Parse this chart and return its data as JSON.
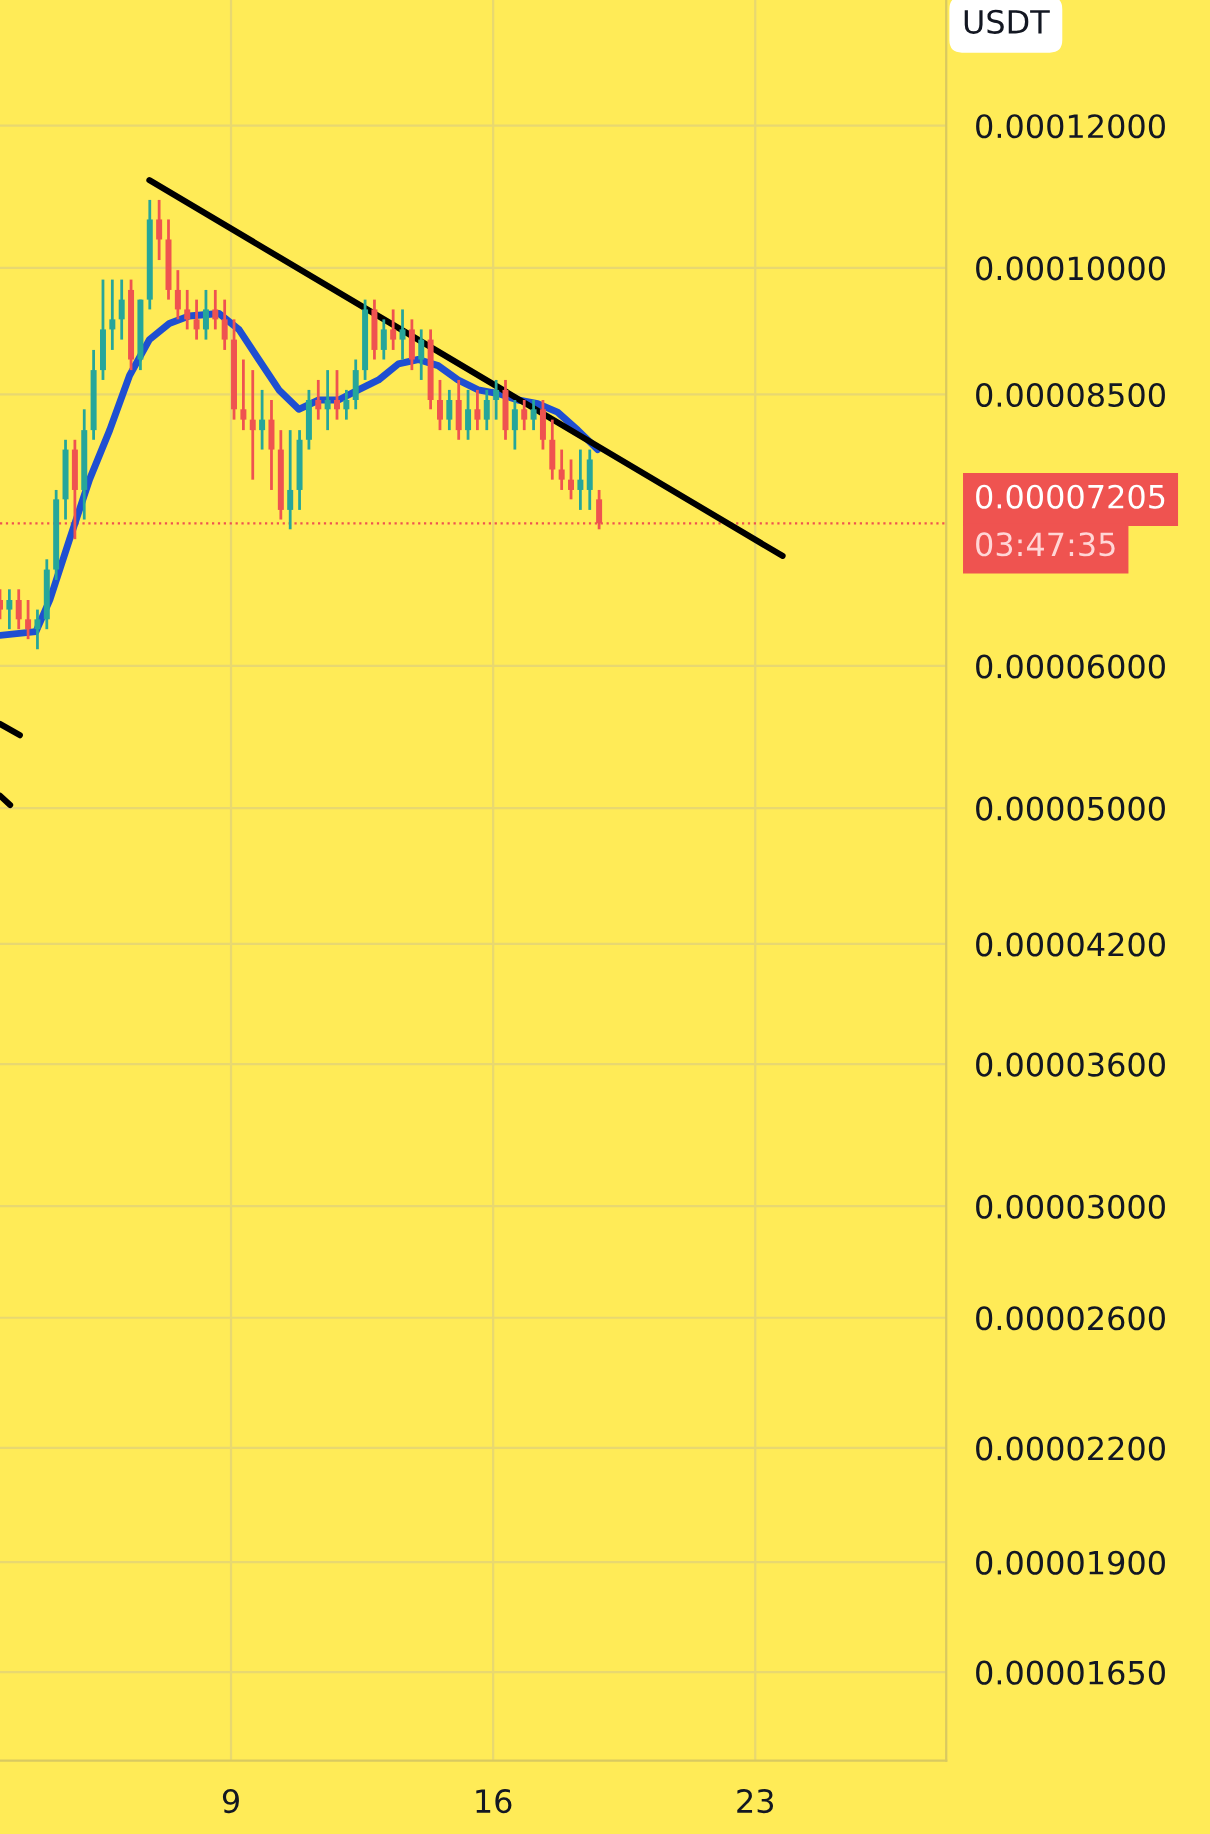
{
  "chart_data": {
    "type": "candlestick",
    "x": [
      2.83,
      3.08,
      3.33,
      3.58,
      3.83,
      4.08,
      4.33,
      4.58,
      4.83,
      5.08,
      5.33,
      5.58,
      5.83,
      6.08,
      6.33,
      6.58,
      6.83,
      7.08,
      7.33,
      7.58,
      7.83,
      8.08,
      8.33,
      8.58,
      8.83,
      9.08,
      9.33,
      9.58,
      9.83,
      10.08,
      10.33,
      10.58,
      10.83,
      11.08,
      11.33,
      11.58,
      11.83,
      12.08,
      12.33,
      12.58,
      12.83,
      13.08,
      13.33,
      13.58,
      13.83,
      14.08,
      14.33,
      14.58,
      14.83,
      15.08,
      15.33,
      15.58,
      15.83,
      16.08,
      16.33,
      16.58,
      16.83,
      17.08,
      17.33,
      17.58,
      17.83,
      18.08,
      18.33,
      18.58,
      18.83
    ],
    "ohlc": [
      [
        6.53e-05,
        6.62e-05,
        6.37e-05,
        6.45e-05
      ],
      [
        6.45e-05,
        6.62e-05,
        6.29e-05,
        6.53e-05
      ],
      [
        6.53e-05,
        6.62e-05,
        6.29e-05,
        6.37e-05
      ],
      [
        6.37e-05,
        6.53e-05,
        6.21e-05,
        6.29e-05
      ],
      [
        6.29e-05,
        6.45e-05,
        6.13e-05,
        6.37e-05
      ],
      [
        6.37e-05,
        6.88e-05,
        6.29e-05,
        6.79e-05
      ],
      [
        6.79e-05,
        7.52e-05,
        6.7e-05,
        7.43e-05
      ],
      [
        7.43e-05,
        8.02e-05,
        7.24e-05,
        7.92e-05
      ],
      [
        7.92e-05,
        8.02e-05,
        7.06e-05,
        7.52e-05
      ],
      [
        7.52e-05,
        8.34e-05,
        7.24e-05,
        8.12e-05
      ],
      [
        8.12e-05,
        9e-05,
        8.02e-05,
        8.77e-05
      ],
      [
        8.77e-05,
        9.85e-05,
        8.66e-05,
        9.24e-05
      ],
      [
        9.24e-05,
        9.85e-05,
        9e-05,
        9.36e-05
      ],
      [
        9.36e-05,
        9.85e-05,
        9.12e-05,
        9.6e-05
      ],
      [
        9.72e-05,
        9.85e-05,
        8.77e-05,
        8.89e-05
      ],
      [
        8.89e-05,
        9.6e-05,
        8.77e-05,
        9.6e-05
      ],
      [
        9.6e-05,
        0.0001091,
        9.48e-05,
        0.0001064
      ],
      [
        0.0001064,
        0.0001091,
        0.000101,
        0.0001037
      ],
      [
        0.0001037,
        0.0001064,
        9.6e-05,
        9.72e-05
      ],
      [
        9.72e-05,
        9.97e-05,
        9.36e-05,
        9.48e-05
      ],
      [
        9.48e-05,
        9.72e-05,
        9.24e-05,
        9.36e-05
      ],
      [
        9.36e-05,
        9.6e-05,
        9.12e-05,
        9.24e-05
      ],
      [
        9.24e-05,
        9.72e-05,
        9.12e-05,
        9.48e-05
      ],
      [
        9.48e-05,
        9.72e-05,
        9.24e-05,
        9.36e-05
      ],
      [
        9.36e-05,
        9.6e-05,
        9e-05,
        9.12e-05
      ],
      [
        9.12e-05,
        9.36e-05,
        8.23e-05,
        8.34e-05
      ],
      [
        8.34e-05,
        8.89e-05,
        8.12e-05,
        8.23e-05
      ],
      [
        8.23e-05,
        8.77e-05,
        7.62e-05,
        8.12e-05
      ],
      [
        8.12e-05,
        8.55e-05,
        7.92e-05,
        8.23e-05
      ],
      [
        8.23e-05,
        8.44e-05,
        7.52e-05,
        7.92e-05
      ],
      [
        7.92e-05,
        8.12e-05,
        7.24e-05,
        7.33e-05
      ],
      [
        7.33e-05,
        8.12e-05,
        7.15e-05,
        7.52e-05
      ],
      [
        7.52e-05,
        8.12e-05,
        7.33e-05,
        8.02e-05
      ],
      [
        8.02e-05,
        8.55e-05,
        7.92e-05,
        8.44e-05
      ],
      [
        8.44e-05,
        8.66e-05,
        8.23e-05,
        8.34e-05
      ],
      [
        8.34e-05,
        8.77e-05,
        8.12e-05,
        8.44e-05
      ],
      [
        8.44e-05,
        8.77e-05,
        8.23e-05,
        8.34e-05
      ],
      [
        8.34e-05,
        8.55e-05,
        8.23e-05,
        8.44e-05
      ],
      [
        8.44e-05,
        8.89e-05,
        8.34e-05,
        8.77e-05
      ],
      [
        8.77e-05,
        9.6e-05,
        8.66e-05,
        9.48e-05
      ],
      [
        9.48e-05,
        9.6e-05,
        8.89e-05,
        9e-05
      ],
      [
        9e-05,
        9.36e-05,
        8.89e-05,
        9.24e-05
      ],
      [
        9.24e-05,
        9.48e-05,
        9e-05,
        9.12e-05
      ],
      [
        9.12e-05,
        9.48e-05,
        8.89e-05,
        9.24e-05
      ],
      [
        9.24e-05,
        9.36e-05,
        8.77e-05,
        8.89e-05
      ],
      [
        8.89e-05,
        9.24e-05,
        8.66e-05,
        9.12e-05
      ],
      [
        9.12e-05,
        9.24e-05,
        8.34e-05,
        8.44e-05
      ],
      [
        8.44e-05,
        8.66e-05,
        8.12e-05,
        8.23e-05
      ],
      [
        8.23e-05,
        8.55e-05,
        8.12e-05,
        8.44e-05
      ],
      [
        8.44e-05,
        8.66e-05,
        8.02e-05,
        8.12e-05
      ],
      [
        8.12e-05,
        8.55e-05,
        8.02e-05,
        8.34e-05
      ],
      [
        8.34e-05,
        8.55e-05,
        8.12e-05,
        8.23e-05
      ],
      [
        8.23e-05,
        8.55e-05,
        8.12e-05,
        8.44e-05
      ],
      [
        8.44e-05,
        8.66e-05,
        8.23e-05,
        8.55e-05
      ],
      [
        8.55e-05,
        8.66e-05,
        8.02e-05,
        8.12e-05
      ],
      [
        8.12e-05,
        8.44e-05,
        7.92e-05,
        8.34e-05
      ],
      [
        8.34e-05,
        8.44e-05,
        8.12e-05,
        8.23e-05
      ],
      [
        8.23e-05,
        8.44e-05,
        8.12e-05,
        8.34e-05
      ],
      [
        8.34e-05,
        8.44e-05,
        7.92e-05,
        8.02e-05
      ],
      [
        8.02e-05,
        8.23e-05,
        7.62e-05,
        7.72e-05
      ],
      [
        7.72e-05,
        7.92e-05,
        7.52e-05,
        7.62e-05
      ],
      [
        7.62e-05,
        7.82e-05,
        7.43e-05,
        7.52e-05
      ],
      [
        7.52e-05,
        7.92e-05,
        7.33e-05,
        7.62e-05
      ],
      [
        7.52e-05,
        7.92e-05,
        7.33e-05,
        7.82e-05
      ],
      [
        7.43e-05,
        7.52e-05,
        7.15e-05,
        7.205e-05
      ]
    ],
    "colors": [
      "#ef5350",
      "#26a69a",
      "#ef5350",
      "#ef5350",
      "#26a69a",
      "#26a69a",
      "#26a69a",
      "#26a69a",
      "#ef5350",
      "#26a69a",
      "#26a69a",
      "#26a69a",
      "#26a69a",
      "#26a69a",
      "#ef5350",
      "#26a69a",
      "#26a69a",
      "#ef5350",
      "#ef5350",
      "#ef5350",
      "#ef5350",
      "#ef5350",
      "#26a69a",
      "#ef5350",
      "#ef5350",
      "#ef5350",
      "#ef5350",
      "#ef5350",
      "#26a69a",
      "#ef5350",
      "#ef5350",
      "#26a69a",
      "#26a69a",
      "#26a69a",
      "#ef5350",
      "#26a69a",
      "#ef5350",
      "#26a69a",
      "#26a69a",
      "#26a69a",
      "#ef5350",
      "#26a69a",
      "#ef5350",
      "#26a69a",
      "#ef5350",
      "#26a69a",
      "#ef5350",
      "#ef5350",
      "#26a69a",
      "#ef5350",
      "#26a69a",
      "#ef5350",
      "#26a69a",
      "#26a69a",
      "#ef5350",
      "#26a69a",
      "#ef5350",
      "#26a69a",
      "#ef5350",
      "#ef5350",
      "#ef5350",
      "#ef5350",
      "#26a69a",
      "#26a69a",
      "#ef5350"
    ],
    "series": [
      {
        "type": "line",
        "color": "#1f4fd1",
        "x": [
          2.83,
          3.79,
          4.16,
          4.69,
          5.22,
          5.76,
          6.29,
          6.82,
          7.35,
          7.88,
          8.68,
          9.21,
          9.74,
          10.28,
          10.81,
          11.34,
          11.87,
          12.4,
          12.94,
          13.47,
          14.0,
          14.53,
          15.06,
          15.6,
          16.13,
          16.66,
          17.19,
          17.72,
          18.26,
          18.79
        ],
        "values": [
          6.24e-05,
          6.27e-05,
          6.53e-05,
          7.06e-05,
          7.62e-05,
          8.12e-05,
          8.71e-05,
          9.12e-05,
          9.31e-05,
          9.4e-05,
          9.43e-05,
          9.24e-05,
          8.89e-05,
          8.55e-05,
          8.34e-05,
          8.44e-05,
          8.44e-05,
          8.55e-05,
          8.66e-05,
          8.84e-05,
          8.89e-05,
          8.82e-05,
          8.66e-05,
          8.55e-05,
          8.51e-05,
          8.44e-05,
          8.4e-05,
          8.31e-05,
          8.12e-05,
          7.92e-05
        ]
      },
      {
        "type": "line",
        "color": "#000000",
        "x": [
          6.82,
          23.73
        ],
        "values": [
          0.0001119,
          6.91e-05
        ]
      },
      {
        "type": "line",
        "color": "#000000",
        "x": [
          2.83,
          3.36
        ],
        "values": [
          5.57e-05,
          5.49e-05
        ]
      },
      {
        "type": "line",
        "color": "#000000",
        "x": [
          2.83,
          3.1
        ],
        "values": [
          5.08e-05,
          5.02e-05
        ]
      }
    ],
    "log": "y",
    "xlim": [
      2.83,
      28.1
    ],
    "xticks": [
      9,
      16,
      23
    ],
    "ylim": [
      1.473e-05,
      0.000141
    ],
    "yticks": [
      {
        "value": 0.00012,
        "label": "0.00012000"
      },
      {
        "value": 0.0001,
        "label": "0.00010000"
      },
      {
        "value": 8.5e-05,
        "label": "0.00008500"
      },
      {
        "value": 6e-05,
        "label": "0.00006000"
      },
      {
        "value": 5e-05,
        "label": "0.00005000"
      },
      {
        "value": 4.2e-05,
        "label": "0.00004200"
      },
      {
        "value": 3.6e-05,
        "label": "0.00003600"
      },
      {
        "value": 3e-05,
        "label": "0.00003000"
      },
      {
        "value": 2.6e-05,
        "label": "0.00002600"
      },
      {
        "value": 2.2e-05,
        "label": "0.00002200"
      },
      {
        "value": 1.9e-05,
        "label": "0.00001900"
      },
      {
        "value": 1.65e-05,
        "label": "0.00001650"
      }
    ],
    "ref_lines": [
      {
        "axis": "y",
        "value": 7.205e-05,
        "label": "0.00007205",
        "color": "#ef5350",
        "line_style": "dotted"
      }
    ],
    "annotations": [
      "03:47:35",
      "USDT"
    ],
    "grid": true
  }
}
